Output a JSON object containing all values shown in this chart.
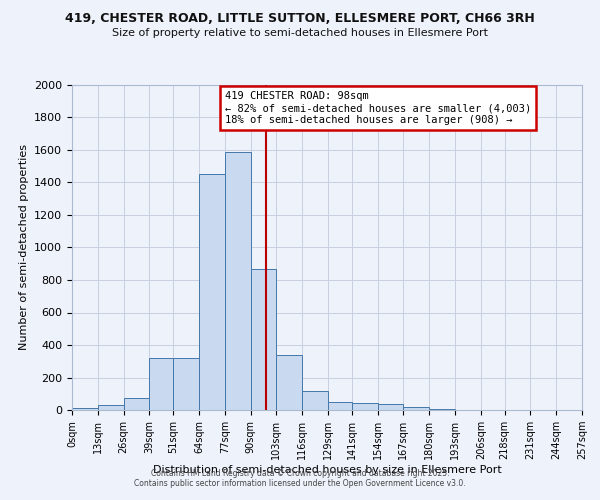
{
  "title1": "419, CHESTER ROAD, LITTLE SUTTON, ELLESMERE PORT, CH66 3RH",
  "title2": "Size of property relative to semi-detached houses in Ellesmere Port",
  "xlabel": "Distribution of semi-detached houses by size in Ellesmere Port",
  "ylabel": "Number of semi-detached properties",
  "bin_edges": [
    0,
    13,
    26,
    39,
    51,
    64,
    77,
    90,
    103,
    116,
    129,
    141,
    154,
    167,
    180,
    193,
    206,
    218,
    231,
    244,
    257
  ],
  "bar_heights": [
    10,
    30,
    75,
    320,
    320,
    1450,
    1590,
    870,
    340,
    120,
    50,
    45,
    35,
    20,
    8,
    3,
    1,
    0,
    0,
    0
  ],
  "bar_color": "#c9d9f0",
  "bar_edge_color": "#4477aa",
  "bg_color": "#eef2fb",
  "grid_color": "#c8cfe0",
  "property_size": 98,
  "vline_color": "#bb0000",
  "annotation_title": "419 CHESTER ROAD: 98sqm",
  "annotation_line1": "← 82% of semi-detached houses are smaller (4,003)",
  "annotation_line2": "18% of semi-detached houses are larger (908) →",
  "annotation_box_color": "#ffffff",
  "annotation_box_edge": "#cc0000",
  "ylim": [
    0,
    2000
  ],
  "yticks": [
    0,
    200,
    400,
    600,
    800,
    1000,
    1200,
    1400,
    1600,
    1800,
    2000
  ],
  "footnote1": "Contains HM Land Registry data © Crown copyright and database right 2025.",
  "footnote2": "Contains public sector information licensed under the Open Government Licence v3.0."
}
